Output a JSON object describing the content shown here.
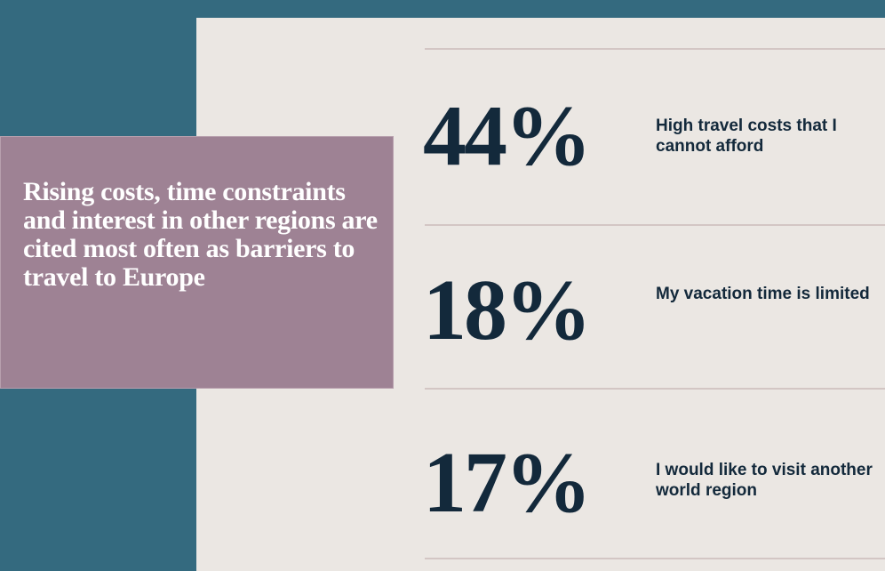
{
  "headline": "Rising costs, time constraints and interest in other regions are cited most often as barriers to travel to Europe",
  "stats": [
    {
      "value": "44%",
      "label": "High travel costs that I cannot afford"
    },
    {
      "value": "18%",
      "label": "My vacation time is limited"
    },
    {
      "value": "17%",
      "label": "I would like to visit another world region"
    }
  ]
}
